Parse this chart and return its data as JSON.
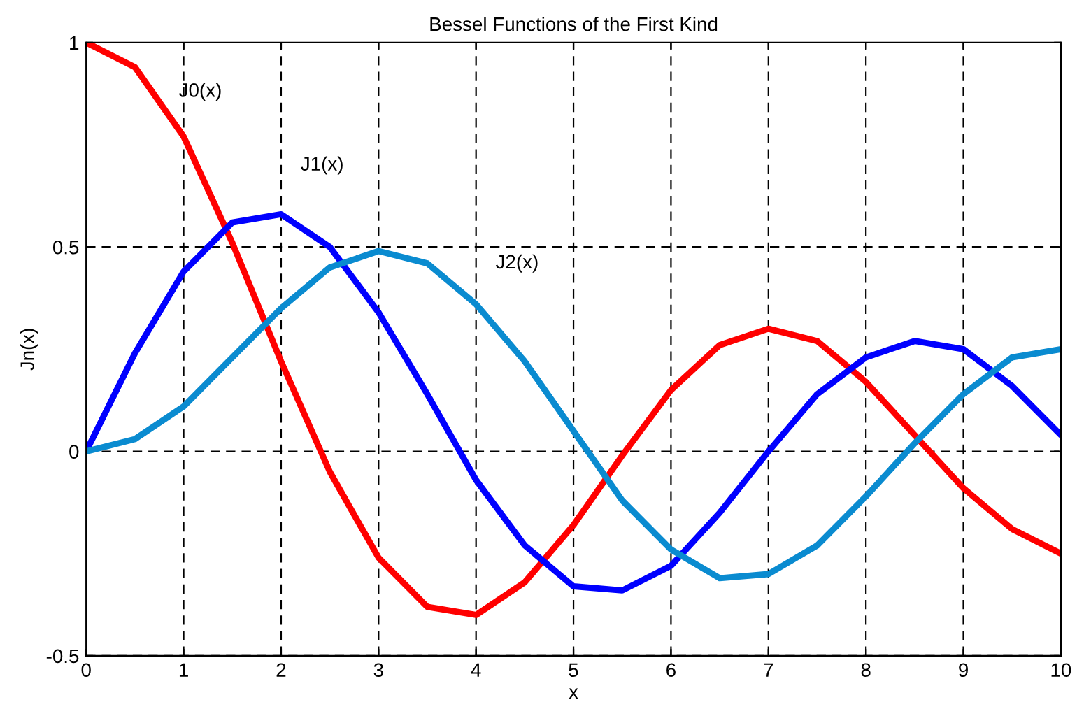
{
  "chart_data": {
    "type": "line",
    "title": "Bessel Functions of the First Kind",
    "xlabel": "x",
    "ylabel": "Jn(x)",
    "x": [
      0,
      0.5,
      1,
      1.5,
      2,
      2.5,
      3,
      3.5,
      4,
      4.5,
      5,
      5.5,
      6,
      6.5,
      7,
      7.5,
      8,
      8.5,
      9,
      9.5,
      10
    ],
    "series": [
      {
        "name": "J0(x)",
        "color": "#ff0000",
        "values": [
          1,
          0.94,
          0.77,
          0.51,
          0.22,
          -0.05,
          -0.26,
          -0.38,
          -0.4,
          -0.32,
          -0.18,
          -0.01,
          0.15,
          0.26,
          0.3,
          0.27,
          0.17,
          0.04,
          -0.09,
          -0.19,
          -0.25
        ]
      },
      {
        "name": "J1(x)",
        "color": "#0000ff",
        "values": [
          0,
          0.24,
          0.44,
          0.56,
          0.58,
          0.5,
          0.34,
          0.14,
          -0.07,
          -0.23,
          -0.33,
          -0.34,
          -0.28,
          -0.15,
          0,
          0.14,
          0.23,
          0.27,
          0.25,
          0.16,
          0.04
        ]
      },
      {
        "name": "J2(x)",
        "color": "#0a8bd0",
        "values": [
          0,
          0.03,
          0.11,
          0.23,
          0.35,
          0.45,
          0.49,
          0.46,
          0.36,
          0.22,
          0.05,
          -0.12,
          -0.24,
          -0.31,
          -0.3,
          -0.23,
          -0.11,
          0.02,
          0.14,
          0.23,
          0.25
        ]
      }
    ],
    "xlim": [
      0,
      10
    ],
    "ylim": [
      -0.5,
      1
    ],
    "xticks": [
      0,
      1,
      2,
      3,
      4,
      5,
      6,
      7,
      8,
      9,
      10
    ],
    "yticks": [
      -0.5,
      0,
      0.5,
      1
    ],
    "grid": true,
    "line_style": "solid",
    "marker": "none",
    "legend": false
  }
}
